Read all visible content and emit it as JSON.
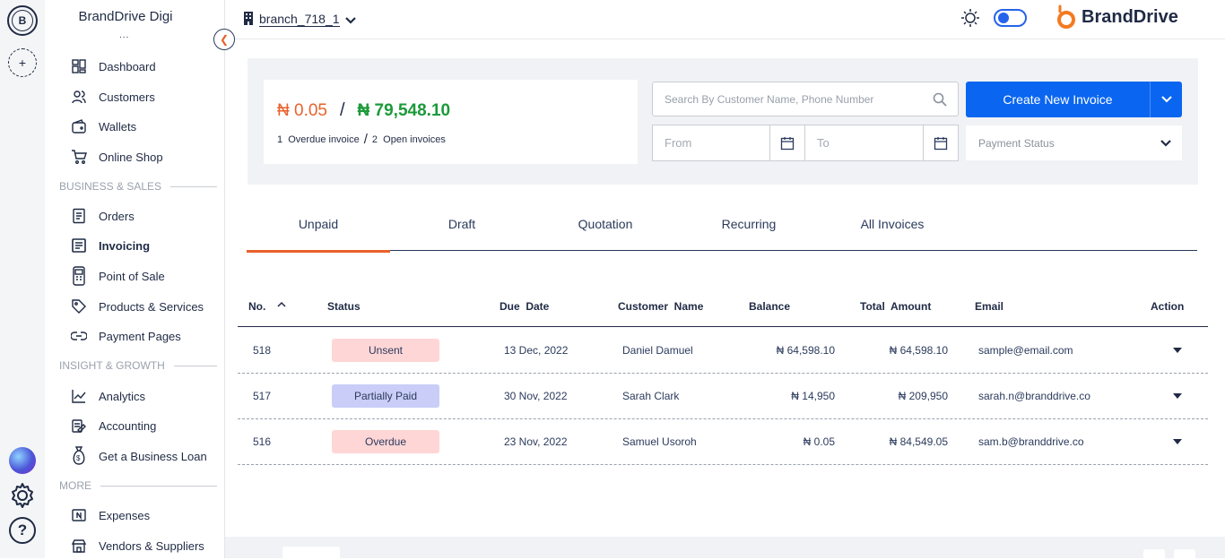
{
  "rail": {
    "avatar_letter": "B",
    "add_symbol": "+",
    "help_symbol": "?"
  },
  "sidebar": {
    "brand_name": "BrandDrive Digi",
    "brand_more": "...",
    "items_top": [
      {
        "label": "Dashboard",
        "icon": "dashboard-icon"
      },
      {
        "label": "Customers",
        "icon": "customers-icon"
      },
      {
        "label": "Wallets",
        "icon": "wallet-icon"
      },
      {
        "label": "Online Shop",
        "icon": "cart-icon"
      }
    ],
    "section_business": "BUSINESS & SALES",
    "items_business": [
      {
        "label": "Orders",
        "icon": "orders-icon"
      },
      {
        "label": "Invoicing",
        "icon": "invoice-icon",
        "active": true
      },
      {
        "label": "Point of Sale",
        "icon": "pos-icon"
      },
      {
        "label": "Products & Services",
        "icon": "tag-icon"
      },
      {
        "label": "Payment Pages",
        "icon": "link-icon"
      }
    ],
    "section_insight": "INSIGHT & GROWTH",
    "items_insight": [
      {
        "label": "Analytics",
        "icon": "analytics-icon"
      },
      {
        "label": "Accounting",
        "icon": "accounting-icon"
      },
      {
        "label": "Get a Business Loan",
        "icon": "loan-icon"
      }
    ],
    "section_more": "MORE",
    "items_more": [
      {
        "label": "Expenses",
        "icon": "expenses-icon"
      },
      {
        "label": "Vendors & Suppliers",
        "icon": "vendors-icon"
      }
    ]
  },
  "topbar": {
    "branch_name": "branch_718_1",
    "logo_text": "BrandDrive"
  },
  "summary": {
    "overdue_amount": "₦ 0.05",
    "separator": "/",
    "open_amount": "₦ 79,548.10",
    "overdue_count": "1",
    "overdue_label": "Overdue invoice",
    "open_count": "2",
    "open_label": "Open invoices"
  },
  "search": {
    "placeholder": "Search By Customer Name, Phone Number"
  },
  "create_button": {
    "label": "Create New Invoice"
  },
  "filters": {
    "from_placeholder": "From",
    "to_placeholder": "To",
    "payment_status_placeholder": "Payment Status"
  },
  "tabs": [
    {
      "label": "Unpaid",
      "active": true
    },
    {
      "label": "Draft"
    },
    {
      "label": "Quotation"
    },
    {
      "label": "Recurring"
    },
    {
      "label": "All Invoices"
    }
  ],
  "table": {
    "columns": {
      "no": "No.",
      "status": "Status",
      "due_date": "Due  Date",
      "customer": "Customer  Name",
      "balance": "Balance",
      "total": "Total  Amount",
      "email": "Email",
      "action": "Action"
    },
    "sort_indicator": "^",
    "rows": [
      {
        "no": "518",
        "status": "Unsent",
        "status_color": "#ffd6d6",
        "due": "13 Dec, 2022",
        "customer": "Daniel Damuel",
        "balance": "₦ 64,598.10",
        "total": "₦ 64,598.10",
        "email": "sample@email.com"
      },
      {
        "no": "517",
        "status": "Partially Paid",
        "status_color": "#c9cdf7",
        "due": "30 Nov, 2022",
        "customer": "Sarah Clark",
        "balance": "₦ 14,950",
        "total": "₦ 209,950",
        "email": "sarah.n@branddrive.co"
      },
      {
        "no": "516",
        "status": "Overdue",
        "status_color": "#ffd6d6",
        "due": "23 Nov, 2022",
        "customer": "Samuel Usoroh",
        "balance": "₦ 0.05",
        "total": "₦ 84,549.05",
        "email": "sam.b@branddrive.co"
      }
    ]
  },
  "colors": {
    "accent_orange": "#e8612c",
    "primary_blue": "#0a66f0",
    "open_green": "#1c9a3a"
  }
}
